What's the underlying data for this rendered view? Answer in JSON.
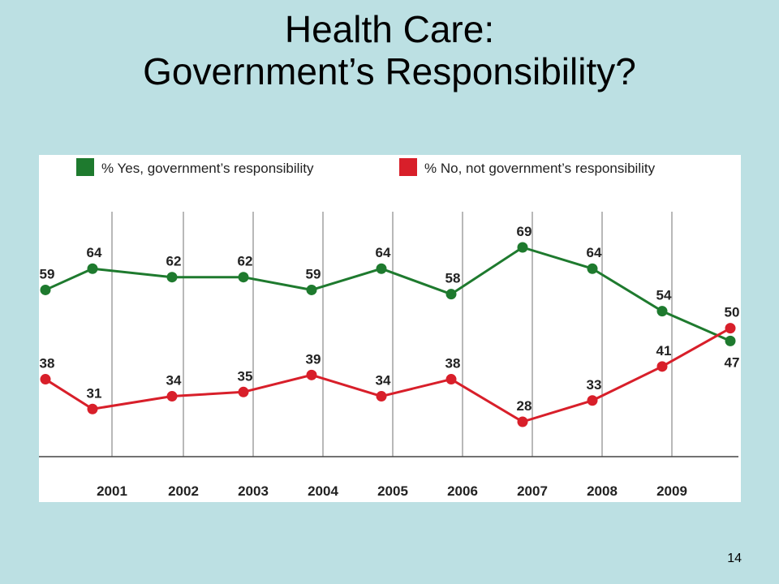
{
  "slide": {
    "title_line1": "Health Care:",
    "title_line2": "Government’s Responsibility?",
    "page_number": "14"
  },
  "colors": {
    "background": "#bce0e3",
    "yes_series": "#1e7a2e",
    "no_series": "#d81f2a",
    "grid": "#8a8a8a"
  },
  "chart_data": {
    "type": "line",
    "title": "",
    "xlabel": "",
    "ylabel": "",
    "x_tick_labels": [
      "2001",
      "2002",
      "2003",
      "2004",
      "2005",
      "2006",
      "2007",
      "2008",
      "2009"
    ],
    "grid": "vertical lines between years",
    "legend_placement": "top",
    "ylim": [
      20,
      75
    ],
    "series": [
      {
        "name": "% Yes, government’s responsibility",
        "color": "#1e7a2e",
        "values": [
          59,
          64,
          62,
          62,
          59,
          64,
          58,
          69,
          64,
          54,
          47
        ],
        "labels": [
          "59",
          "64",
          "62",
          "62",
          "59",
          "64",
          "58",
          "69",
          "64",
          "54",
          "47"
        ]
      },
      {
        "name": "% No, not government’s responsibility",
        "color": "#d81f2a",
        "values": [
          38,
          31,
          34,
          35,
          39,
          34,
          38,
          28,
          33,
          41,
          50
        ],
        "labels": [
          "38",
          "31",
          "34",
          "35",
          "39",
          "34",
          "38",
          "28",
          "33",
          "41",
          "50"
        ]
      }
    ]
  }
}
